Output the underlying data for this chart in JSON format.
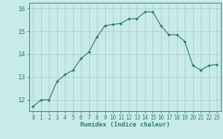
{
  "x": [
    0,
    1,
    2,
    3,
    4,
    5,
    6,
    7,
    8,
    9,
    10,
    11,
    12,
    13,
    14,
    15,
    16,
    17,
    18,
    19,
    20,
    21,
    22,
    23
  ],
  "y": [
    11.7,
    12.0,
    12.0,
    12.8,
    13.1,
    13.3,
    13.8,
    14.1,
    14.75,
    15.25,
    15.3,
    15.35,
    15.55,
    15.55,
    15.85,
    15.85,
    15.25,
    14.85,
    14.85,
    14.55,
    13.5,
    13.3,
    13.5,
    13.55
  ],
  "line_color": "#2e7d6e",
  "marker_color": "#2e7d6e",
  "bg_color": "#c8eaea",
  "grid_color": "#aacccc",
  "xlabel": "Humidex (Indice chaleur)",
  "ylim": [
    11.5,
    16.25
  ],
  "xlim": [
    -0.5,
    23.5
  ],
  "yticks": [
    12,
    13,
    14,
    15,
    16
  ],
  "xticks": [
    0,
    1,
    2,
    3,
    4,
    5,
    6,
    7,
    8,
    9,
    10,
    11,
    12,
    13,
    14,
    15,
    16,
    17,
    18,
    19,
    20,
    21,
    22,
    23
  ],
  "tick_color": "#2e7d6e",
  "label_color": "#2e7d6e",
  "tick_fontsize": 5.5,
  "ylabel_fontsize": 6.5,
  "xlabel_fontsize": 6.5
}
